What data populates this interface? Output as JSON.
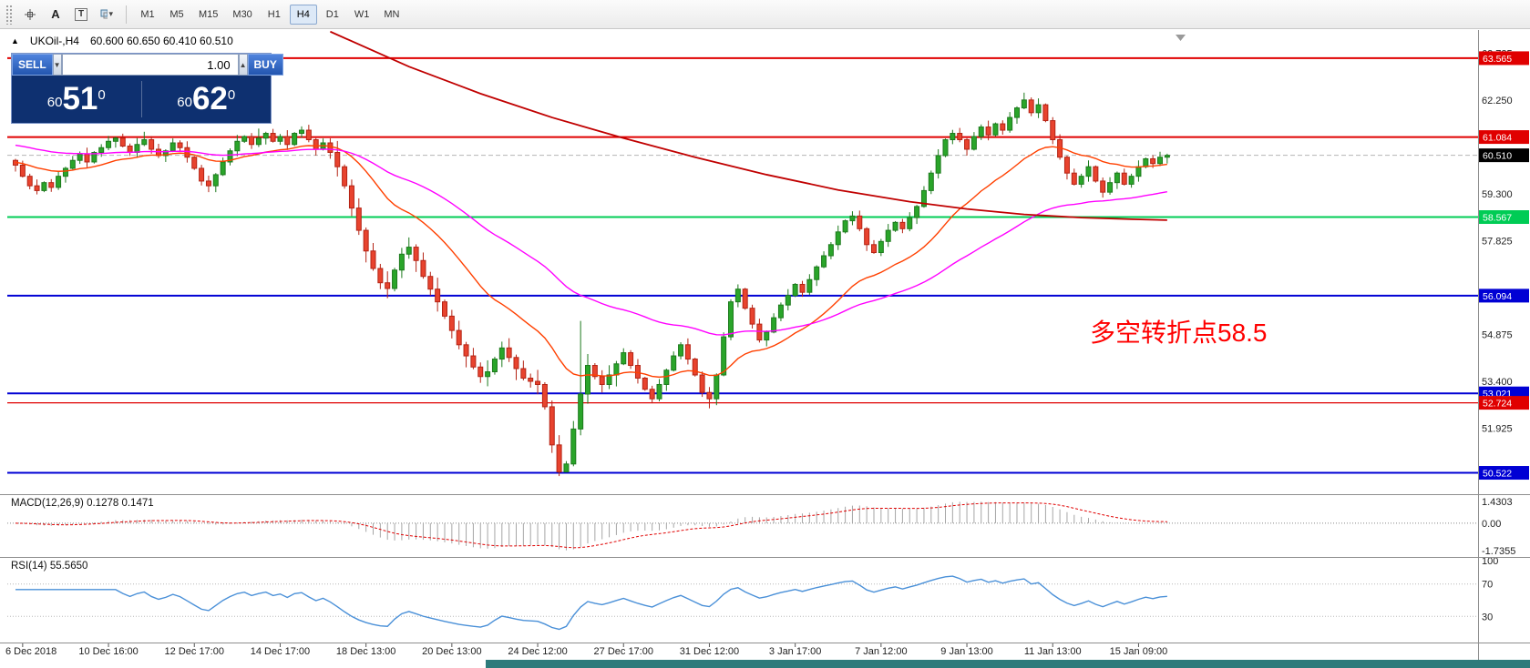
{
  "toolbar": {
    "tools": [
      {
        "name": "crosshair",
        "label": ""
      },
      {
        "name": "text-annotation",
        "label": "A"
      },
      {
        "name": "text-label",
        "label": "T"
      },
      {
        "name": "figures",
        "label": "",
        "caret": "▾"
      }
    ],
    "timeframes": [
      {
        "label": "M1"
      },
      {
        "label": "M5"
      },
      {
        "label": "M15"
      },
      {
        "label": "M30"
      },
      {
        "label": "H1"
      },
      {
        "label": "H4",
        "active": true
      },
      {
        "label": "D1"
      },
      {
        "label": "W1"
      },
      {
        "label": "MN"
      }
    ]
  },
  "chart_header": {
    "collapse_icon": "▲",
    "symbol": "UKOil-,H4",
    "ohlc": "60.600 60.650 60.410 60.510"
  },
  "trade_panel": {
    "sell_label": "SELL",
    "buy_label": "BUY",
    "volume": "1.00",
    "spinner_down": "▼",
    "spinner_up": "▲",
    "sell_price": {
      "small": "60",
      "big": "51",
      "sup": "0"
    },
    "buy_price": {
      "small": "60",
      "big": "62",
      "sup": "0"
    }
  },
  "indicators": {
    "macd_label": "MACD(12,26,9) 0.1278 0.1471",
    "rsi_label": "RSI(14) 55.5650"
  },
  "annotation": {
    "text": "多空转折点58.5",
    "color": "#ff0000"
  },
  "chart_data": {
    "type": "candlestick",
    "symbol": "UKOil-",
    "period": "H4",
    "ylim": [
      49.85,
      64.45
    ],
    "first_open": 60.35,
    "closes": [
      60.2,
      59.85,
      59.55,
      59.4,
      59.65,
      59.5,
      59.85,
      60.1,
      60.35,
      60.55,
      60.3,
      60.6,
      60.75,
      60.95,
      61.05,
      60.8,
      60.6,
      60.85,
      61.0,
      60.7,
      60.5,
      60.65,
      60.9,
      60.75,
      60.45,
      60.1,
      59.7,
      59.55,
      59.9,
      60.3,
      60.65,
      60.95,
      61.1,
      60.85,
      61.05,
      61.2,
      60.95,
      61.1,
      60.85,
      61.2,
      61.3,
      61.0,
      60.7,
      60.9,
      60.6,
      60.15,
      59.55,
      58.85,
      58.15,
      57.5,
      56.95,
      56.5,
      56.32,
      56.9,
      57.4,
      57.62,
      57.2,
      56.7,
      56.3,
      55.9,
      55.45,
      55.0,
      54.55,
      54.2,
      53.85,
      53.55,
      53.7,
      54.1,
      54.45,
      54.15,
      53.8,
      53.5,
      53.4,
      53.3,
      52.6,
      51.4,
      50.55,
      50.8,
      51.9,
      53.0,
      53.9,
      53.55,
      53.3,
      53.6,
      53.95,
      54.3,
      53.9,
      53.5,
      53.15,
      52.85,
      53.3,
      53.75,
      54.2,
      54.55,
      54.1,
      53.6,
      53.05,
      52.85,
      53.6,
      54.8,
      55.9,
      56.3,
      55.7,
      55.2,
      54.7,
      54.95,
      55.4,
      55.8,
      56.1,
      56.45,
      56.2,
      56.6,
      57.0,
      57.35,
      57.7,
      58.1,
      58.45,
      58.6,
      58.2,
      57.7,
      57.45,
      57.8,
      58.15,
      58.4,
      58.2,
      58.55,
      58.9,
      59.4,
      59.95,
      60.5,
      61.0,
      61.2,
      61.0,
      60.7,
      61.1,
      61.4,
      61.15,
      61.5,
      61.3,
      61.7,
      62.0,
      62.25,
      61.85,
      62.1,
      61.6,
      61.0,
      60.45,
      59.95,
      59.6,
      59.85,
      60.15,
      59.7,
      59.35,
      59.65,
      59.95,
      59.6,
      59.85,
      60.15,
      60.4,
      60.25,
      60.45,
      60.51
    ],
    "wick_overrides": [
      {
        "i": 3,
        "l": 59.28
      },
      {
        "i": 18,
        "h": 61.25
      },
      {
        "i": 27,
        "l": 59.35
      },
      {
        "i": 34,
        "h": 61.35
      },
      {
        "i": 40,
        "h": 61.42
      },
      {
        "i": 76,
        "l": 50.42
      },
      {
        "i": 77,
        "l": 50.58
      },
      {
        "i": 79,
        "h": 55.3
      },
      {
        "i": 97,
        "l": 52.55
      },
      {
        "i": 101,
        "h": 56.45
      },
      {
        "i": 117,
        "h": 58.75
      },
      {
        "i": 141,
        "h": 62.48
      },
      {
        "i": 152,
        "l": 59.18
      }
    ],
    "levels": [
      {
        "price": 63.565,
        "label": "63.565",
        "color": "#e00000",
        "badge_bg": "#e00000",
        "width": 2
      },
      {
        "price": 61.084,
        "label": "61.084",
        "color": "#e00000",
        "badge_bg": "#e00000",
        "width": 2
      },
      {
        "price": 60.51,
        "label": "60.510",
        "color": "#b4b4b4",
        "badge_bg": "#000000",
        "width": 1,
        "dashed": true
      },
      {
        "price": 58.567,
        "label": "58.567",
        "color": "#00cc55",
        "badge_bg": "#00cc55",
        "width": 2
      },
      {
        "price": 56.094,
        "label": "56.094",
        "color": "#0000d4",
        "badge_bg": "#0000d4",
        "width": 2
      },
      {
        "price": 53.021,
        "label": "53.021",
        "color": "#0000d4",
        "badge_bg": "#0000d4",
        "width": 2
      },
      {
        "price": 52.724,
        "label": "52.724",
        "color": "#e00000",
        "badge_bg": "#e00000",
        "width": 1.2
      },
      {
        "price": 50.522,
        "label": "50.522",
        "color": "#0000d4",
        "badge_bg": "#0000d4",
        "width": 2
      }
    ],
    "moving_averages": [
      {
        "period": 21,
        "seed": 60.3,
        "color": "#ff4000"
      },
      {
        "period": 55,
        "seed": 60.85,
        "color": "#ff00ff"
      }
    ],
    "long_ma": {
      "color": "#c00000",
      "points": [
        [
          44,
          64.4
        ],
        [
          55,
          63.3
        ],
        [
          65,
          62.45
        ],
        [
          75,
          61.7
        ],
        [
          85,
          61.05
        ],
        [
          95,
          60.45
        ],
        [
          105,
          59.9
        ],
        [
          115,
          59.42
        ],
        [
          125,
          59.05
        ],
        [
          133,
          58.82
        ],
        [
          141,
          58.65
        ],
        [
          149,
          58.55
        ],
        [
          156,
          58.5
        ],
        [
          161,
          58.47
        ]
      ]
    },
    "macd": {
      "fast": 12,
      "slow": 26,
      "signal": 9,
      "value": "0.1278",
      "signal_value": "0.1471"
    },
    "rsi": {
      "period": 14,
      "value": "55.5650",
      "levels": [
        70,
        30
      ]
    },
    "axis": {
      "price_ticks": [
        {
          "label": "63.725",
          "price": 63.725
        },
        {
          "label": "62.250",
          "price": 62.25
        },
        {
          "label": "59.300",
          "price": 59.3
        },
        {
          "label": "57.825",
          "price": 57.825
        },
        {
          "label": "54.875",
          "price": 54.875
        },
        {
          "label": "53.400",
          "price": 53.4
        },
        {
          "label": "51.925",
          "price": 51.925
        }
      ],
      "macd_ticks": {
        "top": "1.4303",
        "zero": "0.00",
        "bottom": "-1.7355"
      },
      "rsi_ticks": {
        "top": "100",
        "upper": "70",
        "lower": "30"
      },
      "time_labels": [
        {
          "text": "6 Dec 2018",
          "bar": 1,
          "align": "start"
        },
        {
          "text": "10 Dec 16:00",
          "bar": 13
        },
        {
          "text": "12 Dec 17:00",
          "bar": 25
        },
        {
          "text": "14 Dec 17:00",
          "bar": 37
        },
        {
          "text": "18 Dec 13:00",
          "bar": 49
        },
        {
          "text": "20 Dec 13:00",
          "bar": 61
        },
        {
          "text": "24 Dec 12:00",
          "bar": 73
        },
        {
          "text": "27 Dec 17:00",
          "bar": 85
        },
        {
          "text": "31 Dec 12:00",
          "bar": 97
        },
        {
          "text": "3 Jan 17:00",
          "bar": 109
        },
        {
          "text": "7 Jan 12:00",
          "bar": 121
        },
        {
          "text": "9 Jan 13:00",
          "bar": 133
        },
        {
          "text": "11 Jan 13:00",
          "bar": 145
        },
        {
          "text": "15 Jan 09:00",
          "bar": 157
        }
      ]
    },
    "colors": {
      "candle_up_fill": "#2aa52a",
      "candle_up_stroke": "#1d7a1d",
      "candle_down_fill": "#e8432e",
      "candle_down_stroke": "#b42314",
      "macd_histogram": "#a6a6a6",
      "macd_signal": "#e00000",
      "rsi_line": "#4a90d8"
    }
  }
}
